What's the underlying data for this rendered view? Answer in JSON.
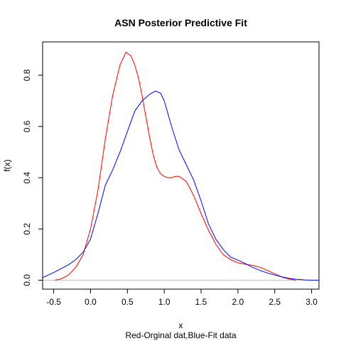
{
  "chart_data": {
    "type": "line",
    "title": "ASN Posterior Predictive Fit",
    "xlabel": "x",
    "sub": "Red-Orginal dat,Blue-Fit data",
    "ylabel": "f(x)",
    "xlim": [
      -0.65,
      3.1
    ],
    "ylim": [
      -0.035,
      0.93
    ],
    "x_ticks": [
      -0.5,
      0.0,
      0.5,
      1.0,
      1.5,
      2.0,
      2.5,
      3.0
    ],
    "x_tick_labels": [
      "-0.5",
      "0.0",
      "0.5",
      "1.0",
      "1.5",
      "2.0",
      "2.5",
      "3.0"
    ],
    "y_ticks": [
      0.0,
      0.2,
      0.4,
      0.6,
      0.8
    ],
    "y_tick_labels": [
      "0.0",
      "0.2",
      "0.4",
      "0.6",
      "0.8"
    ],
    "baseline": 0,
    "baseline_color": "#bebebe",
    "grid": false,
    "legend": "none",
    "series": [
      {
        "color": "#ff0000",
        "x": [
          -0.48,
          -0.4,
          -0.3,
          -0.2,
          -0.1,
          0.0,
          0.1,
          0.2,
          0.3,
          0.4,
          0.48,
          0.55,
          0.6,
          0.65,
          0.7,
          0.75,
          0.8,
          0.85,
          0.9,
          0.95,
          1.0,
          1.05,
          1.1,
          1.15,
          1.2,
          1.3,
          1.4,
          1.5,
          1.6,
          1.7,
          1.8,
          1.9,
          2.0,
          2.1,
          2.2,
          2.3,
          2.4,
          2.5,
          2.6,
          2.7,
          2.78
        ],
        "y": [
          0.0,
          0.005,
          0.02,
          0.05,
          0.1,
          0.2,
          0.35,
          0.55,
          0.72,
          0.84,
          0.89,
          0.875,
          0.84,
          0.79,
          0.72,
          0.64,
          0.56,
          0.49,
          0.44,
          0.415,
          0.405,
          0.4,
          0.4,
          0.405,
          0.405,
          0.385,
          0.33,
          0.26,
          0.195,
          0.14,
          0.1,
          0.08,
          0.068,
          0.062,
          0.058,
          0.05,
          0.038,
          0.025,
          0.012,
          0.004,
          0.0
        ]
      },
      {
        "color": "#0000ff",
        "x": [
          -0.65,
          -0.5,
          -0.4,
          -0.3,
          -0.2,
          -0.1,
          0.0,
          0.1,
          0.2,
          0.3,
          0.4,
          0.5,
          0.6,
          0.7,
          0.8,
          0.88,
          0.95,
          1.0,
          1.1,
          1.2,
          1.3,
          1.4,
          1.5,
          1.6,
          1.7,
          1.8,
          1.9,
          2.0,
          2.1,
          2.2,
          2.3,
          2.4,
          2.5,
          2.6,
          2.7,
          2.8,
          2.9,
          3.0,
          3.1
        ],
        "y": [
          0.01,
          0.03,
          0.045,
          0.06,
          0.08,
          0.11,
          0.16,
          0.26,
          0.37,
          0.43,
          0.5,
          0.58,
          0.66,
          0.7,
          0.725,
          0.738,
          0.73,
          0.7,
          0.6,
          0.51,
          0.45,
          0.39,
          0.31,
          0.22,
          0.16,
          0.12,
          0.09,
          0.078,
          0.065,
          0.05,
          0.038,
          0.028,
          0.02,
          0.013,
          0.007,
          0.003,
          0.001,
          0.0,
          0.0
        ]
      }
    ]
  }
}
